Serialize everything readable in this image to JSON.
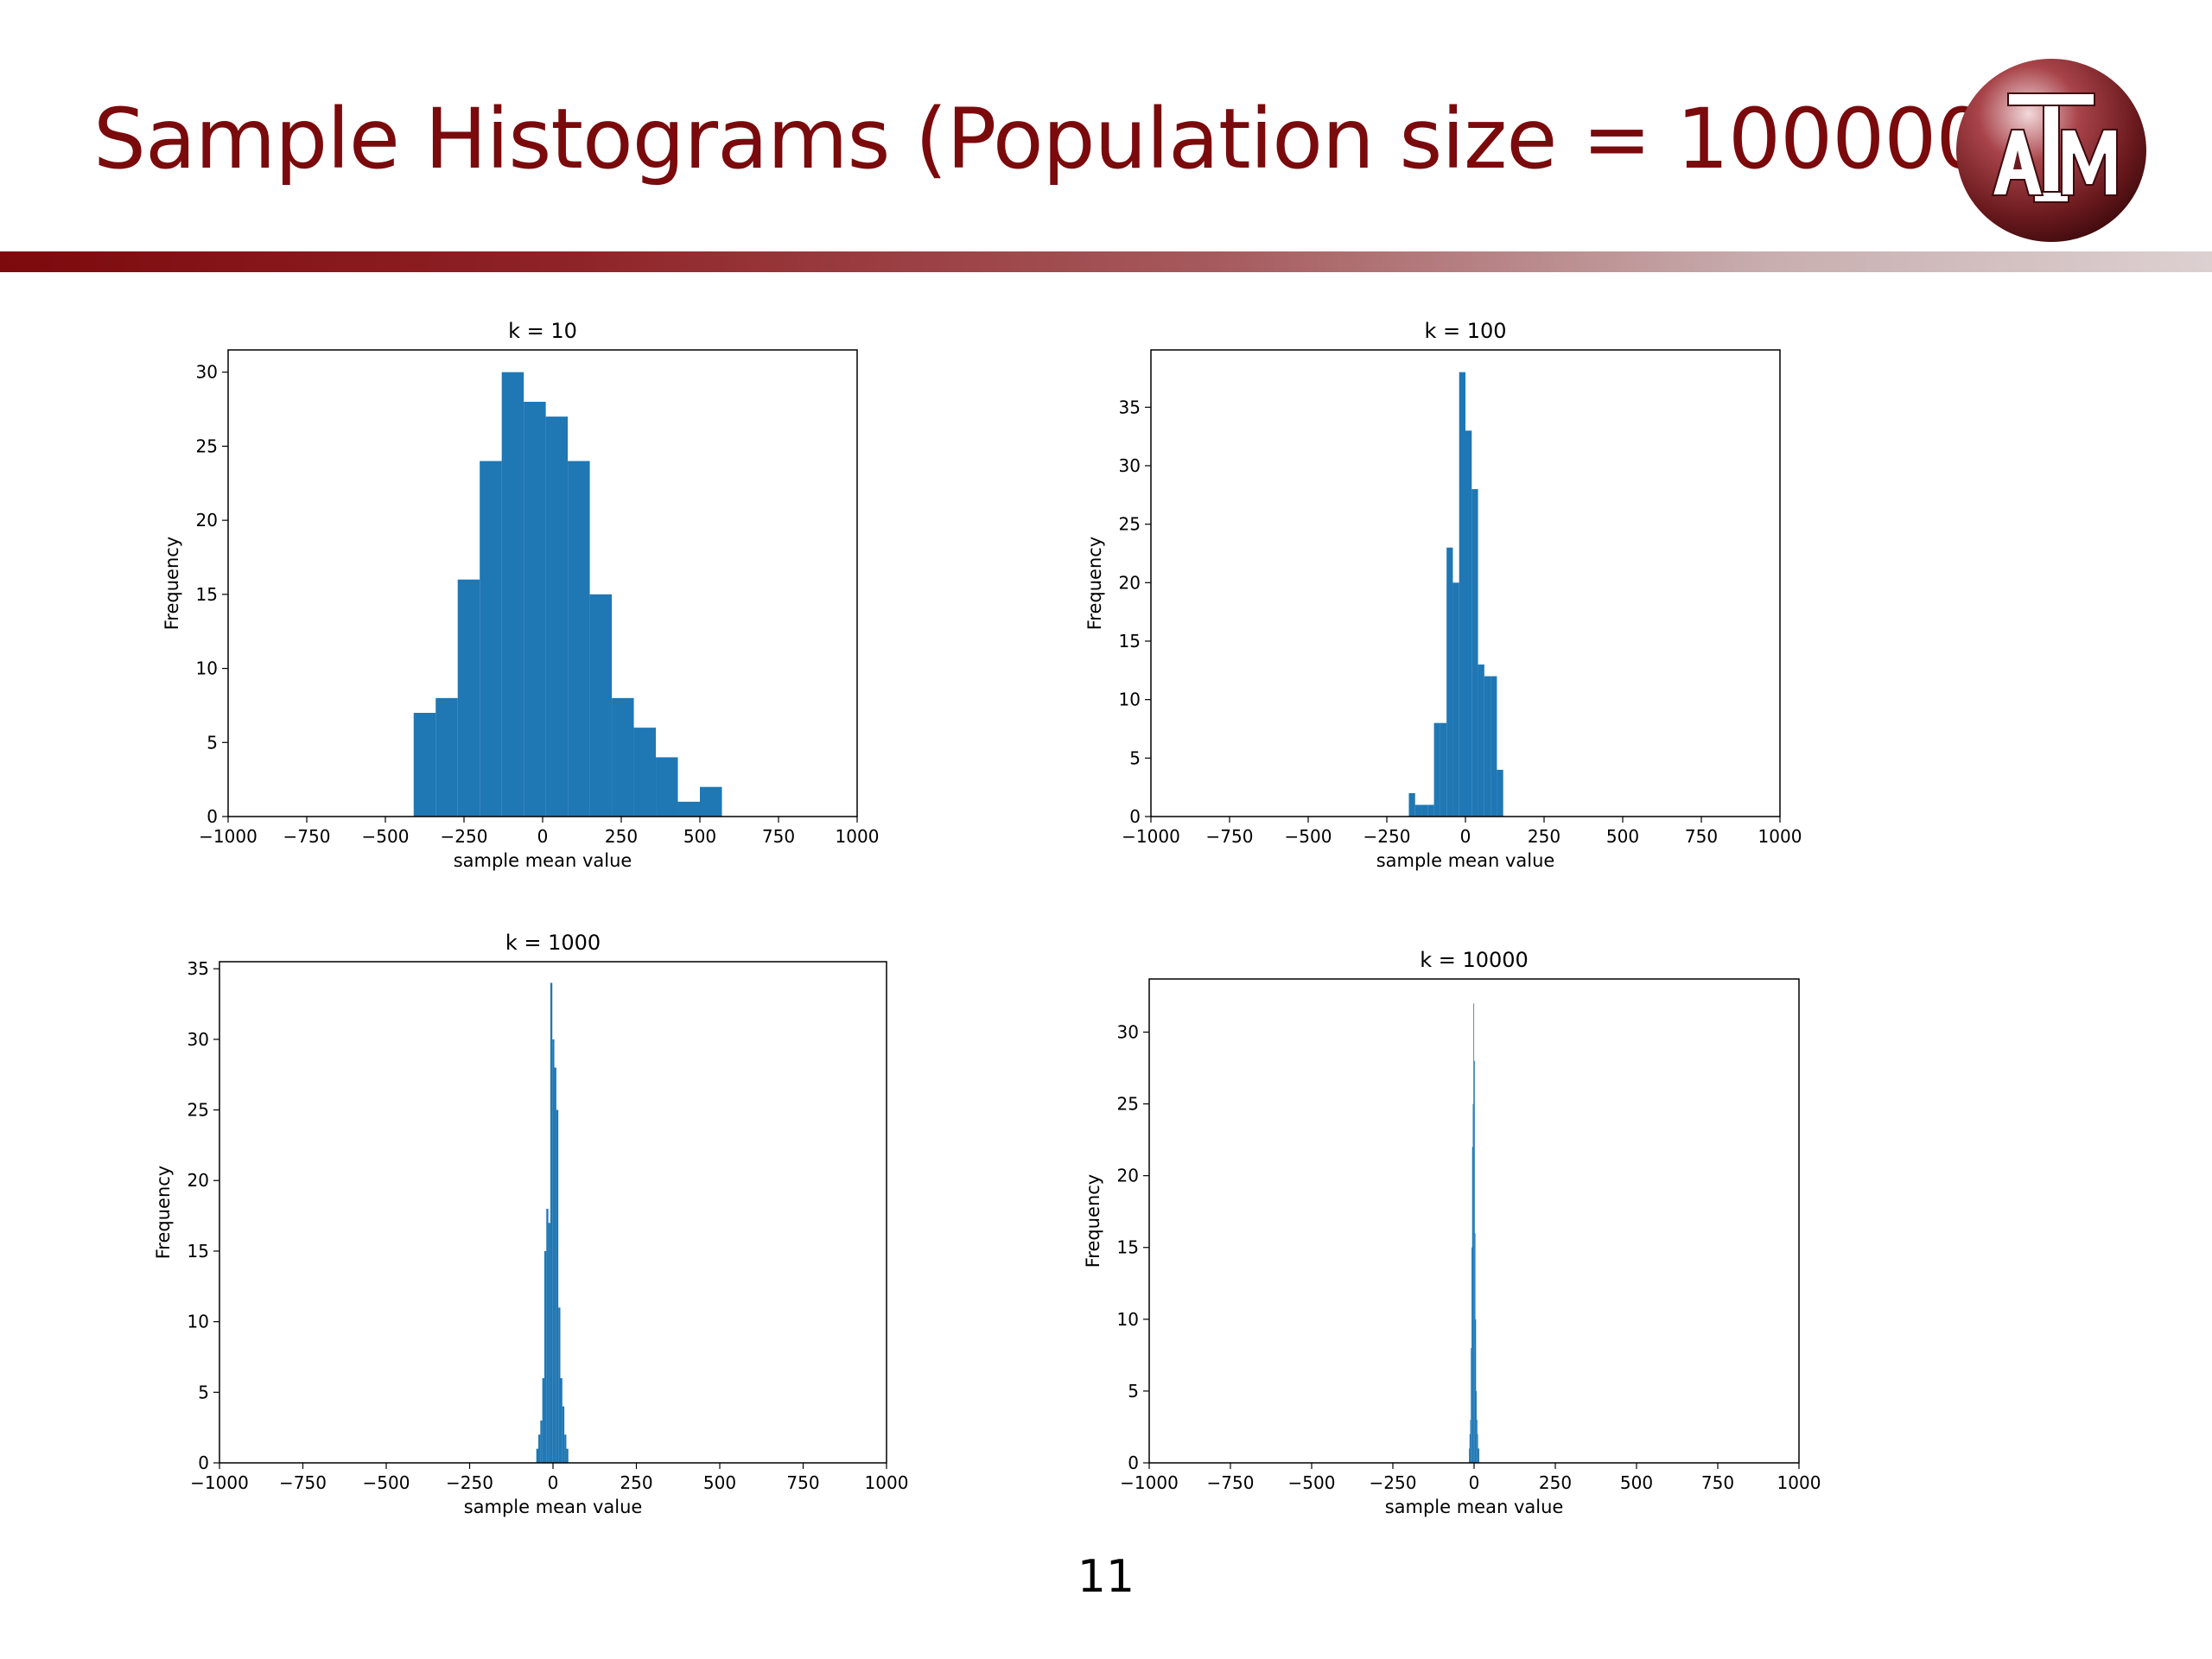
{
  "slide": {
    "title": "Sample Histograms (Population size = 100000)",
    "page_number": "11",
    "logo_text": "ATM"
  },
  "colors": {
    "title": "#7a0a0c",
    "bar": "#1f77b4",
    "logo": "#6b1a1e"
  },
  "chart_data": [
    {
      "type": "bar",
      "title": "k = 10",
      "xlabel": "sample mean value",
      "ylabel": "Frequency",
      "xlim": [
        -1000,
        1000
      ],
      "ylim": [
        0,
        31.5
      ],
      "xticks": [
        -1000,
        -750,
        -500,
        -250,
        0,
        250,
        500,
        750,
        1000
      ],
      "xtick_labels": [
        "−1000",
        "−750",
        "−500",
        "−250",
        "0",
        "250",
        "500",
        "750",
        "1000"
      ],
      "yticks": [
        0,
        5,
        10,
        15,
        20,
        25,
        30
      ],
      "ytick_labels": [
        "0",
        "5",
        "10",
        "15",
        "20",
        "25",
        "30"
      ],
      "bin_edges": [
        -410,
        -340,
        -270,
        -200,
        -130,
        -60,
        10,
        80,
        150,
        220,
        290,
        360,
        430,
        500,
        570
      ],
      "counts": [
        7,
        8,
        16,
        24,
        30,
        28,
        27,
        24,
        15,
        8,
        6,
        4,
        1,
        2
      ]
    },
    {
      "type": "bar",
      "title": "k = 100",
      "xlabel": "sample mean value",
      "ylabel": "Frequency",
      "xlim": [
        -1000,
        1000
      ],
      "ylim": [
        0,
        39.9
      ],
      "xticks": [
        -1000,
        -750,
        -500,
        -250,
        0,
        250,
        500,
        750,
        1000
      ],
      "xtick_labels": [
        "−1000",
        "−750",
        "−500",
        "−250",
        "0",
        "250",
        "500",
        "750",
        "1000"
      ],
      "yticks": [
        0,
        5,
        10,
        15,
        20,
        25,
        30,
        35
      ],
      "ytick_labels": [
        "0",
        "5",
        "10",
        "15",
        "20",
        "25",
        "30",
        "35"
      ],
      "bin_edges": [
        -180,
        -160,
        -140,
        -120,
        -100,
        -80,
        -60,
        -40,
        -20,
        0,
        20,
        40,
        60,
        80,
        100,
        120,
        140
      ],
      "counts": [
        2,
        1,
        1,
        1,
        8,
        8,
        23,
        20,
        38,
        33,
        28,
        13,
        12,
        12,
        4,
        0
      ]
    },
    {
      "type": "bar",
      "title": "k = 1000",
      "xlabel": "sample mean value",
      "ylabel": "Frequency",
      "xlim": [
        -1000,
        1000
      ],
      "ylim": [
        0,
        35.5
      ],
      "xticks": [
        -1000,
        -750,
        -500,
        -250,
        0,
        250,
        500,
        750,
        1000
      ],
      "xtick_labels": [
        "−1000",
        "−750",
        "−500",
        "−250",
        "0",
        "250",
        "500",
        "750",
        "1000"
      ],
      "yticks": [
        0,
        5,
        10,
        15,
        20,
        25,
        30,
        35
      ],
      "ytick_labels": [
        "0",
        "5",
        "10",
        "15",
        "20",
        "25",
        "30",
        "35"
      ],
      "bin_edges": [
        -50,
        -44,
        -38,
        -32,
        -26,
        -20,
        -14,
        -8,
        -2,
        4,
        10,
        16,
        22,
        28,
        34,
        40,
        46
      ],
      "counts": [
        1,
        2,
        3,
        6,
        15,
        18,
        17,
        34,
        30,
        28,
        25,
        11,
        6,
        4,
        2,
        1
      ]
    },
    {
      "type": "bar",
      "title": "k = 10000",
      "xlabel": "sample mean value",
      "ylabel": "Frequency",
      "xlim": [
        -1000,
        1000
      ],
      "ylim": [
        0,
        33.7
      ],
      "xticks": [
        -1000,
        -750,
        -500,
        -250,
        0,
        250,
        500,
        750,
        1000
      ],
      "xtick_labels": [
        "−1000",
        "−750",
        "−500",
        "−250",
        "0",
        "250",
        "500",
        "750",
        "1000"
      ],
      "yticks": [
        0,
        5,
        10,
        15,
        20,
        25,
        30
      ],
      "ytick_labels": [
        "0",
        "5",
        "10",
        "15",
        "20",
        "25",
        "30"
      ],
      "bin_edges": [
        -16,
        -14,
        -12,
        -10,
        -8,
        -6,
        -4,
        -2,
        0,
        2,
        4,
        6,
        8,
        10,
        12,
        14,
        16
      ],
      "counts": [
        1,
        2,
        3,
        8,
        15,
        22,
        25,
        32,
        28,
        16,
        10,
        5,
        3,
        2,
        1,
        1
      ]
    }
  ]
}
